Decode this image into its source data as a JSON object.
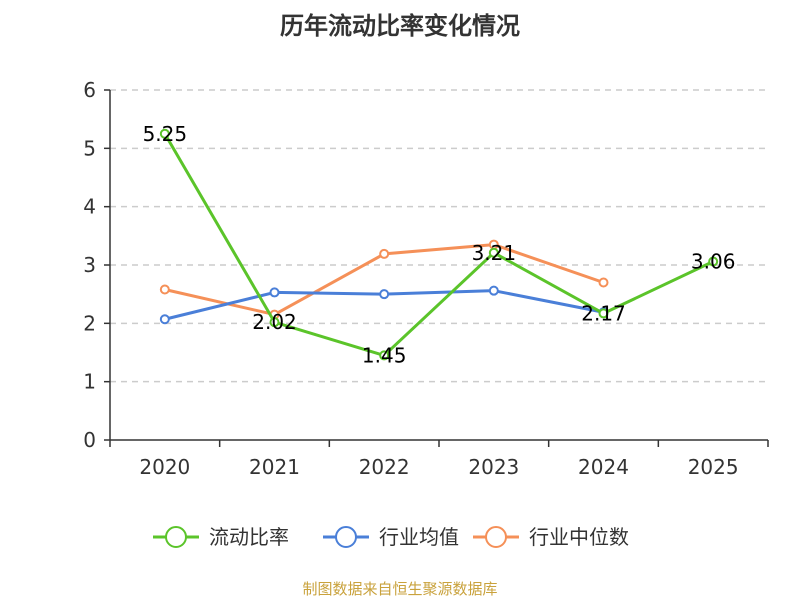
{
  "chart_data": {
    "type": "line",
    "title": "历年流动比率变化情况",
    "categories": [
      "2020",
      "2021",
      "2022",
      "2023",
      "2024",
      "2025"
    ],
    "ylim": [
      0,
      6
    ],
    "yticks": [
      0,
      1,
      2,
      3,
      4,
      5,
      6
    ],
    "grid": true,
    "legend_position": "bottom",
    "series": [
      {
        "name": "流动比率",
        "color": "#5bc42a",
        "values": [
          5.25,
          2.02,
          1.45,
          3.21,
          2.17,
          3.06
        ],
        "labels": [
          "5.25",
          "2.02",
          "1.45",
          "3.21",
          "2.17",
          "3.06"
        ]
      },
      {
        "name": "行业均值",
        "color": "#4a7fd8",
        "values": [
          2.07,
          2.53,
          2.5,
          2.56,
          2.19,
          null
        ]
      },
      {
        "name": "行业中位数",
        "color": "#f59058",
        "values": [
          2.58,
          2.15,
          3.19,
          3.35,
          2.7,
          null
        ]
      }
    ]
  },
  "footer": {
    "source": "制图数据来自恒生聚源数据库"
  }
}
